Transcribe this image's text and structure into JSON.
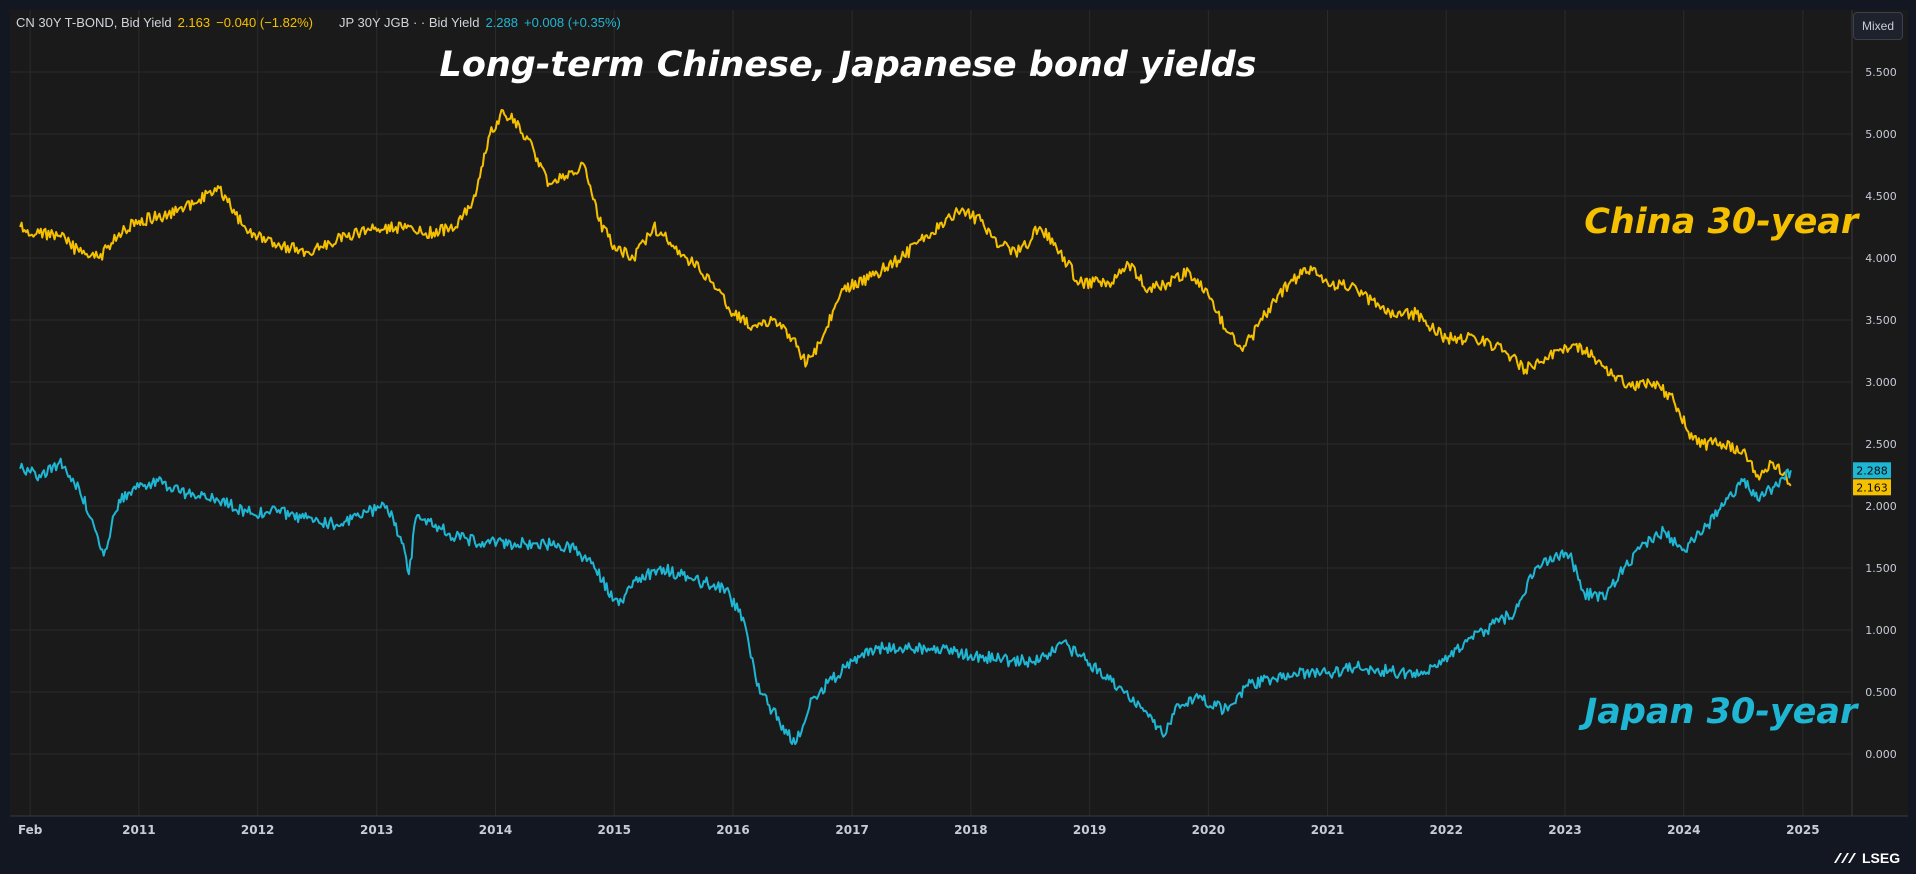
{
  "legend": {
    "cn_name": "CN 30Y T-BOND, Bid Yield",
    "cn_value": "2.163",
    "cn_change": "−0.040 (−1.82%)",
    "jp_name": "JP 30Y JGB · · Bid Yield",
    "jp_value": "2.288",
    "jp_change": "+0.008 (+0.35%)"
  },
  "toolbar": {
    "scale_mode_label": "Mixed"
  },
  "brand": {
    "name": "LSEG"
  },
  "colors": {
    "china": "#f5c000",
    "japan": "#1fb6d4",
    "background": "#1a1a1a",
    "grid": "#2b2b2b"
  },
  "chart_data": {
    "type": "line",
    "title": "Long-term Chinese, Japanese bond yields",
    "x_range": [
      "2009-12-01",
      "2025-06-01"
    ],
    "x_ticks": [
      {
        "date": "2010-02-01",
        "label": "Feb"
      },
      {
        "date": "2011-01-01",
        "label": "2011"
      },
      {
        "date": "2012-01-01",
        "label": "2012"
      },
      {
        "date": "2013-01-01",
        "label": "2013"
      },
      {
        "date": "2014-01-01",
        "label": "2014"
      },
      {
        "date": "2015-01-01",
        "label": "2015"
      },
      {
        "date": "2016-01-01",
        "label": "2016"
      },
      {
        "date": "2017-01-01",
        "label": "2017"
      },
      {
        "date": "2018-01-01",
        "label": "2018"
      },
      {
        "date": "2019-01-01",
        "label": "2019"
      },
      {
        "date": "2020-01-01",
        "label": "2020"
      },
      {
        "date": "2021-01-01",
        "label": "2021"
      },
      {
        "date": "2022-01-01",
        "label": "2022"
      },
      {
        "date": "2023-01-01",
        "label": "2023"
      },
      {
        "date": "2024-01-01",
        "label": "2024"
      },
      {
        "date": "2025-01-01",
        "label": "2025"
      }
    ],
    "ylim": [
      -0.5,
      6.0
    ],
    "y_ticks": [
      {
        "value": 0,
        "label": "0.000"
      },
      {
        "value": 0.5,
        "label": "0.500"
      },
      {
        "value": 1,
        "label": "1.000"
      },
      {
        "value": 1.5,
        "label": "1.500"
      },
      {
        "value": 2,
        "label": "2.000"
      },
      {
        "value": 2.5,
        "label": "2.500"
      },
      {
        "value": 3,
        "label": "3.000"
      },
      {
        "value": 3.5,
        "label": "3.500"
      },
      {
        "value": 4,
        "label": "4.000"
      },
      {
        "value": 4.5,
        "label": "4.500"
      },
      {
        "value": 5,
        "label": "5.000"
      },
      {
        "value": 5.5,
        "label": "5.500"
      }
    ],
    "grid": true,
    "series": [
      {
        "name": "China 30-year",
        "color": "#f5c000",
        "last_value_label": "2.163",
        "last_value": 2.163,
        "points": [
          [
            "2010-01-01",
            4.25
          ],
          [
            "2010-03-01",
            4.2
          ],
          [
            "2010-05-01",
            4.18
          ],
          [
            "2010-07-01",
            4.05
          ],
          [
            "2010-09-01",
            4.0
          ],
          [
            "2010-11-01",
            4.2
          ],
          [
            "2011-01-01",
            4.3
          ],
          [
            "2011-04-01",
            4.35
          ],
          [
            "2011-07-01",
            4.45
          ],
          [
            "2011-09-01",
            4.58
          ],
          [
            "2011-10-01",
            4.45
          ],
          [
            "2011-12-01",
            4.2
          ],
          [
            "2012-03-01",
            4.1
          ],
          [
            "2012-06-01",
            4.05
          ],
          [
            "2012-09-01",
            4.15
          ],
          [
            "2012-12-01",
            4.22
          ],
          [
            "2013-03-01",
            4.25
          ],
          [
            "2013-06-01",
            4.2
          ],
          [
            "2013-09-01",
            4.25
          ],
          [
            "2013-11-01",
            4.5
          ],
          [
            "2013-12-15",
            5.0
          ],
          [
            "2014-01-15",
            5.15
          ],
          [
            "2014-03-01",
            5.12
          ],
          [
            "2014-05-01",
            4.85
          ],
          [
            "2014-06-15",
            4.6
          ],
          [
            "2014-08-15",
            4.7
          ],
          [
            "2014-10-01",
            4.75
          ],
          [
            "2014-11-15",
            4.3
          ],
          [
            "2015-01-01",
            4.1
          ],
          [
            "2015-03-01",
            4.0
          ],
          [
            "2015-05-01",
            4.25
          ],
          [
            "2015-07-01",
            4.1
          ],
          [
            "2015-09-01",
            3.95
          ],
          [
            "2015-11-01",
            3.8
          ],
          [
            "2016-01-01",
            3.55
          ],
          [
            "2016-03-01",
            3.45
          ],
          [
            "2016-05-01",
            3.5
          ],
          [
            "2016-07-01",
            3.35
          ],
          [
            "2016-08-15",
            3.15
          ],
          [
            "2016-10-01",
            3.35
          ],
          [
            "2016-12-01",
            3.75
          ],
          [
            "2017-03-01",
            3.85
          ],
          [
            "2017-06-01",
            4.0
          ],
          [
            "2017-09-01",
            4.2
          ],
          [
            "2017-12-01",
            4.38
          ],
          [
            "2018-02-01",
            4.3
          ],
          [
            "2018-04-01",
            4.1
          ],
          [
            "2018-06-01",
            4.05
          ],
          [
            "2018-08-01",
            4.25
          ],
          [
            "2018-10-01",
            4.05
          ],
          [
            "2018-12-01",
            3.8
          ],
          [
            "2019-03-01",
            3.8
          ],
          [
            "2019-05-01",
            3.95
          ],
          [
            "2019-07-01",
            3.75
          ],
          [
            "2019-09-01",
            3.8
          ],
          [
            "2019-11-01",
            3.9
          ],
          [
            "2020-01-01",
            3.7
          ],
          [
            "2020-03-01",
            3.4
          ],
          [
            "2020-04-15",
            3.25
          ],
          [
            "2020-06-01",
            3.45
          ],
          [
            "2020-08-01",
            3.7
          ],
          [
            "2020-10-01",
            3.85
          ],
          [
            "2020-11-15",
            3.9
          ],
          [
            "2021-01-01",
            3.8
          ],
          [
            "2021-04-01",
            3.75
          ],
          [
            "2021-07-01",
            3.55
          ],
          [
            "2021-10-01",
            3.55
          ],
          [
            "2022-01-01",
            3.35
          ],
          [
            "2022-04-01",
            3.35
          ],
          [
            "2022-07-01",
            3.25
          ],
          [
            "2022-09-01",
            3.1
          ],
          [
            "2022-11-01",
            3.2
          ],
          [
            "2023-02-01",
            3.3
          ],
          [
            "2023-04-01",
            3.2
          ],
          [
            "2023-06-01",
            3.05
          ],
          [
            "2023-08-01",
            2.95
          ],
          [
            "2023-10-01",
            3.0
          ],
          [
            "2023-12-01",
            2.85
          ],
          [
            "2024-01-15",
            2.6
          ],
          [
            "2024-03-01",
            2.5
          ],
          [
            "2024-05-01",
            2.5
          ],
          [
            "2024-07-01",
            2.45
          ],
          [
            "2024-08-15",
            2.25
          ],
          [
            "2024-10-01",
            2.35
          ],
          [
            "2024-11-01",
            2.25
          ],
          [
            "2024-11-25",
            2.163
          ]
        ]
      },
      {
        "name": "Japan 30-year",
        "color": "#1fb6d4",
        "last_value_label": "2.288",
        "last_value": 2.288,
        "points": [
          [
            "2010-01-01",
            2.3
          ],
          [
            "2010-03-01",
            2.25
          ],
          [
            "2010-05-01",
            2.35
          ],
          [
            "2010-07-01",
            2.15
          ],
          [
            "2010-08-15",
            1.85
          ],
          [
            "2010-09-15",
            1.6
          ],
          [
            "2010-11-01",
            2.05
          ],
          [
            "2011-01-01",
            2.15
          ],
          [
            "2011-03-01",
            2.2
          ],
          [
            "2011-06-01",
            2.1
          ],
          [
            "2011-09-01",
            2.05
          ],
          [
            "2011-12-01",
            1.95
          ],
          [
            "2012-03-01",
            1.95
          ],
          [
            "2012-06-01",
            1.9
          ],
          [
            "2012-09-01",
            1.85
          ],
          [
            "2012-12-01",
            1.95
          ],
          [
            "2013-02-01",
            2.0
          ],
          [
            "2013-03-15",
            1.75
          ],
          [
            "2013-04-10",
            1.45
          ],
          [
            "2013-05-01",
            1.9
          ],
          [
            "2013-07-01",
            1.85
          ],
          [
            "2013-09-01",
            1.75
          ],
          [
            "2013-12-01",
            1.7
          ],
          [
            "2014-03-01",
            1.7
          ],
          [
            "2014-06-01",
            1.7
          ],
          [
            "2014-09-01",
            1.65
          ],
          [
            "2014-11-01",
            1.5
          ],
          [
            "2015-01-15",
            1.2
          ],
          [
            "2015-03-01",
            1.4
          ],
          [
            "2015-06-01",
            1.5
          ],
          [
            "2015-09-01",
            1.4
          ],
          [
            "2015-12-01",
            1.35
          ],
          [
            "2016-02-01",
            1.1
          ],
          [
            "2016-03-15",
            0.55
          ],
          [
            "2016-05-01",
            0.35
          ],
          [
            "2016-07-10",
            0.08
          ],
          [
            "2016-09-01",
            0.45
          ],
          [
            "2016-11-01",
            0.6
          ],
          [
            "2017-01-01",
            0.75
          ],
          [
            "2017-03-01",
            0.85
          ],
          [
            "2017-06-01",
            0.85
          ],
          [
            "2017-09-01",
            0.85
          ],
          [
            "2018-01-01",
            0.8
          ],
          [
            "2018-05-01",
            0.75
          ],
          [
            "2018-08-01",
            0.75
          ],
          [
            "2018-10-01",
            0.9
          ],
          [
            "2018-12-01",
            0.8
          ],
          [
            "2019-03-01",
            0.6
          ],
          [
            "2019-05-01",
            0.45
          ],
          [
            "2019-07-01",
            0.3
          ],
          [
            "2019-08-20",
            0.15
          ],
          [
            "2019-10-01",
            0.4
          ],
          [
            "2019-12-01",
            0.45
          ],
          [
            "2020-03-01",
            0.35
          ],
          [
            "2020-05-01",
            0.55
          ],
          [
            "2020-09-01",
            0.65
          ],
          [
            "2021-01-01",
            0.65
          ],
          [
            "2021-04-01",
            0.7
          ],
          [
            "2021-09-01",
            0.65
          ],
          [
            "2021-12-01",
            0.7
          ],
          [
            "2022-02-01",
            0.85
          ],
          [
            "2022-05-01",
            1.0
          ],
          [
            "2022-08-01",
            1.15
          ],
          [
            "2022-10-01",
            1.5
          ],
          [
            "2022-12-01",
            1.6
          ],
          [
            "2023-01-15",
            1.6
          ],
          [
            "2023-03-01",
            1.3
          ],
          [
            "2023-05-01",
            1.25
          ],
          [
            "2023-07-01",
            1.5
          ],
          [
            "2023-09-01",
            1.7
          ],
          [
            "2023-11-01",
            1.8
          ],
          [
            "2024-01-01",
            1.65
          ],
          [
            "2024-03-01",
            1.8
          ],
          [
            "2024-05-01",
            2.0
          ],
          [
            "2024-07-01",
            2.2
          ],
          [
            "2024-08-15",
            2.05
          ],
          [
            "2024-10-01",
            2.15
          ],
          [
            "2024-11-25",
            2.288
          ]
        ]
      }
    ],
    "annotations": [
      {
        "text": "China 30-year",
        "date": "2023-03-01",
        "value": 4.2,
        "color": "#f5c000"
      },
      {
        "text": "Japan 30-year",
        "date": "2023-03-01",
        "value": 0.25,
        "color": "#1fb6d4"
      }
    ]
  }
}
